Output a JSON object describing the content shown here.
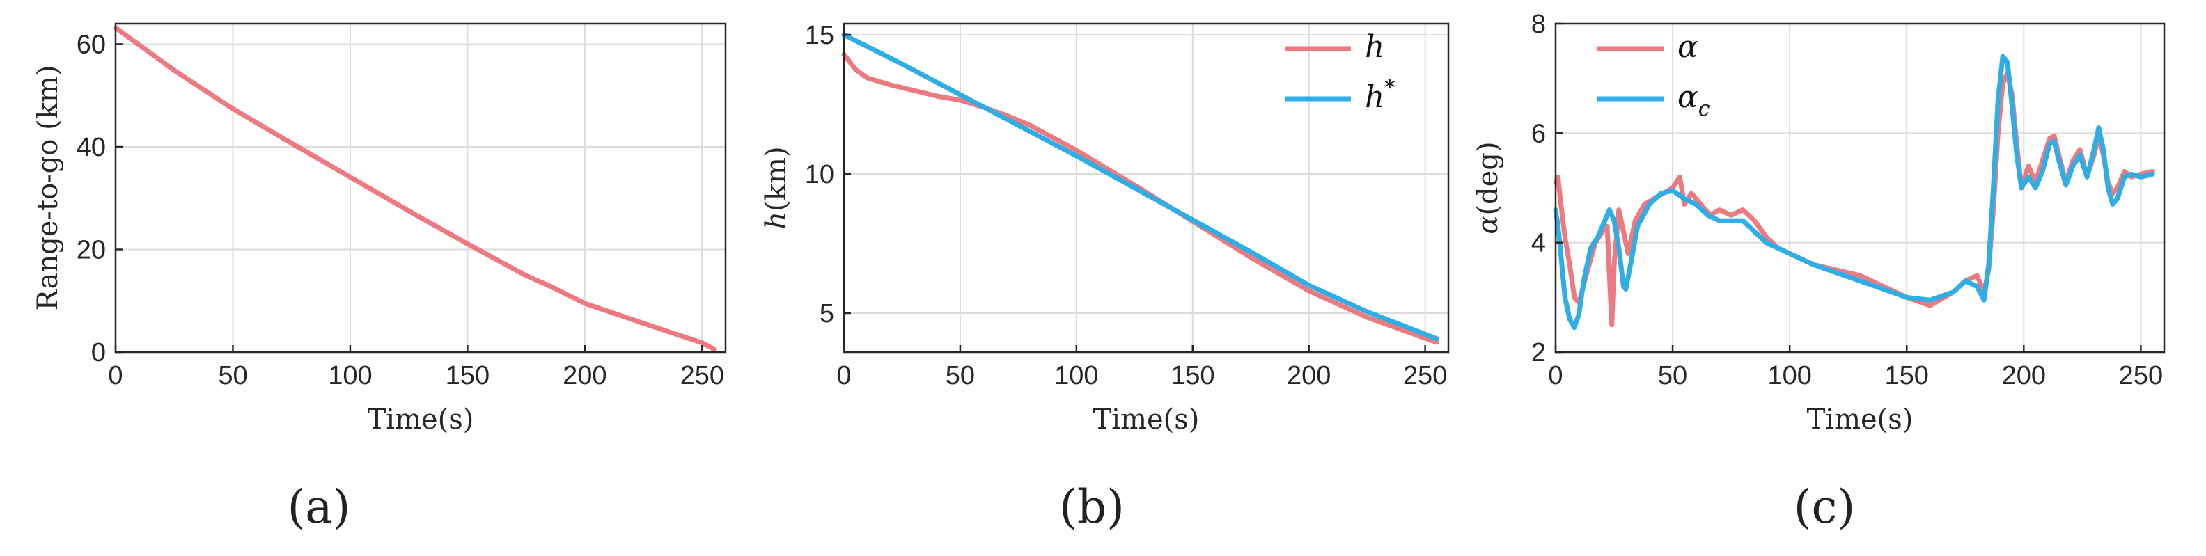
{
  "colors": {
    "h_series": "#ec7a80",
    "ref_series": "#2eaee4",
    "grid": "#dcdcdc",
    "axis": "#262626"
  },
  "captions": {
    "a": "(a)",
    "b": "(b)",
    "c": "(c)"
  },
  "chart_data": [
    {
      "id": "a",
      "type": "line",
      "title": "",
      "xlabel": "Time(s)",
      "ylabel": "Range-to-go (km)",
      "xlim": [
        0,
        260
      ],
      "ylim": [
        0,
        64
      ],
      "xticks": [
        0,
        50,
        100,
        150,
        200,
        250
      ],
      "yticks": [
        0,
        20,
        40,
        60
      ],
      "grid": true,
      "legend": null,
      "series": [
        {
          "name": "Range-to-go",
          "color": "#ec7a80",
          "x": [
            0,
            25,
            50,
            75,
            100,
            125,
            150,
            175,
            185,
            200,
            225,
            250,
            255
          ],
          "y": [
            63.2,
            54.9,
            47.4,
            40.7,
            34.1,
            27.5,
            21.1,
            14.9,
            12.9,
            9.5,
            5.6,
            1.8,
            0.6
          ]
        }
      ]
    },
    {
      "id": "b",
      "type": "line",
      "title": "",
      "xlabel": "Time(s)",
      "ylabel": "h(km)",
      "xlim": [
        0,
        260
      ],
      "ylim": [
        3.6,
        15.4
      ],
      "xticks": [
        0,
        50,
        100,
        150,
        200,
        250
      ],
      "yticks": [
        5,
        10,
        15
      ],
      "grid": true,
      "legend": "top-right",
      "series": [
        {
          "name": "h",
          "color": "#ec7a80",
          "x": [
            0,
            5,
            10,
            20,
            30,
            40,
            50,
            60,
            70,
            80,
            100,
            125,
            150,
            175,
            200,
            225,
            255
          ],
          "y": [
            14.3,
            13.75,
            13.45,
            13.2,
            13.0,
            12.8,
            12.65,
            12.4,
            12.1,
            11.75,
            10.85,
            9.6,
            8.3,
            7.0,
            5.8,
            4.85,
            3.95
          ]
        },
        {
          "name": "h*",
          "color": "#2eaee4",
          "x": [
            0,
            25,
            50,
            75,
            100,
            125,
            150,
            175,
            200,
            225,
            255
          ],
          "y": [
            15.0,
            13.95,
            12.85,
            11.75,
            10.65,
            9.5,
            8.35,
            7.2,
            6.0,
            5.05,
            4.08
          ]
        }
      ]
    },
    {
      "id": "c",
      "type": "line",
      "title": "",
      "xlabel": "Time(s)",
      "ylabel": "α(deg)",
      "xlim": [
        0,
        260
      ],
      "ylim": [
        2,
        8
      ],
      "xticks": [
        0,
        50,
        100,
        150,
        200,
        250
      ],
      "yticks": [
        2,
        4,
        6,
        8
      ],
      "grid": true,
      "legend": "top-left",
      "series": [
        {
          "name": "α",
          "color": "#ec7a80",
          "x": [
            0,
            1,
            2,
            4,
            6,
            8,
            10,
            13,
            17,
            20,
            22,
            23,
            24,
            25,
            27,
            29,
            31,
            34,
            38,
            42,
            46,
            50,
            53,
            55,
            58,
            62,
            66,
            70,
            75,
            80,
            85,
            90,
            95,
            100,
            110,
            120,
            130,
            140,
            150,
            160,
            170,
            175,
            180,
            183,
            185,
            187,
            189,
            191,
            193,
            195,
            197,
            199,
            202,
            205,
            208,
            211,
            213,
            215,
            218,
            221,
            224,
            227,
            230,
            232,
            234,
            236,
            238,
            240,
            243,
            246,
            250,
            255
          ],
          "y": [
            5.1,
            5.2,
            4.8,
            4.1,
            3.6,
            3.0,
            2.9,
            3.4,
            4.0,
            4.2,
            4.3,
            3.4,
            2.5,
            3.6,
            4.6,
            4.2,
            3.8,
            4.4,
            4.7,
            4.8,
            4.9,
            5.0,
            5.2,
            4.7,
            4.9,
            4.7,
            4.5,
            4.6,
            4.5,
            4.6,
            4.4,
            4.1,
            3.9,
            3.8,
            3.6,
            3.5,
            3.4,
            3.2,
            3.0,
            2.85,
            3.1,
            3.3,
            3.4,
            3.1,
            3.5,
            4.6,
            6.0,
            6.9,
            7.1,
            6.7,
            5.8,
            5.0,
            5.4,
            5.1,
            5.5,
            5.9,
            5.95,
            5.6,
            5.1,
            5.5,
            5.7,
            5.2,
            5.6,
            5.95,
            5.6,
            5.1,
            4.9,
            5.0,
            5.3,
            5.2,
            5.25,
            5.3
          ]
        },
        {
          "name": "α_c",
          "color": "#2eaee4",
          "x": [
            0,
            1,
            2,
            4,
            6,
            8,
            10,
            12,
            15,
            18,
            21,
            23,
            25,
            27,
            29,
            30,
            32,
            35,
            40,
            45,
            50,
            55,
            60,
            65,
            70,
            75,
            80,
            90,
            100,
            110,
            120,
            130,
            140,
            150,
            160,
            170,
            175,
            180,
            183,
            185,
            187,
            189,
            191,
            193,
            195,
            197,
            199,
            202,
            205,
            208,
            211,
            213,
            215,
            218,
            221,
            224,
            227,
            230,
            232,
            234,
            236,
            238,
            240,
            243,
            246,
            250,
            255
          ],
          "y": [
            4.6,
            4.3,
            3.9,
            3.0,
            2.6,
            2.45,
            2.7,
            3.3,
            3.9,
            4.1,
            4.4,
            4.6,
            4.4,
            3.9,
            3.2,
            3.15,
            3.6,
            4.3,
            4.7,
            4.9,
            4.95,
            4.8,
            4.7,
            4.5,
            4.4,
            4.4,
            4.4,
            4.0,
            3.8,
            3.6,
            3.45,
            3.3,
            3.15,
            3.0,
            2.95,
            3.1,
            3.3,
            3.2,
            2.95,
            3.6,
            5.0,
            6.6,
            7.4,
            7.3,
            6.5,
            5.6,
            5.0,
            5.2,
            5.0,
            5.3,
            5.8,
            5.85,
            5.5,
            5.05,
            5.4,
            5.6,
            5.2,
            5.7,
            6.1,
            5.7,
            5.0,
            4.7,
            4.8,
            5.2,
            5.25,
            5.2,
            5.25
          ]
        }
      ]
    }
  ]
}
